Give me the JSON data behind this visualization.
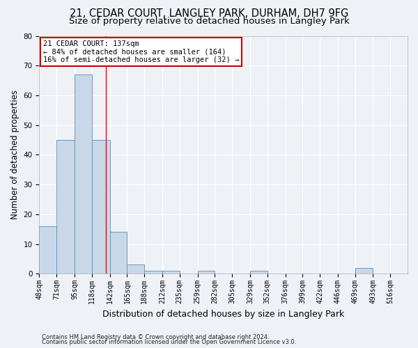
{
  "title1": "21, CEDAR COURT, LANGLEY PARK, DURHAM, DH7 9FG",
  "title2": "Size of property relative to detached houses in Langley Park",
  "xlabel": "Distribution of detached houses by size in Langley Park",
  "ylabel": "Number of detached properties",
  "footer1": "Contains HM Land Registry data © Crown copyright and database right 2024.",
  "footer2": "Contains public sector information licensed under the Open Government Licence v3.0.",
  "annotation_title": "21 CEDAR COURT: 137sqm",
  "annotation_line1": "← 84% of detached houses are smaller (164)",
  "annotation_line2": "16% of semi-detached houses are larger (32) →",
  "bar_left_edges": [
    48,
    71,
    95,
    118,
    142,
    165,
    188,
    212,
    235,
    259,
    282,
    305,
    329,
    352,
    376,
    399,
    422,
    446,
    469,
    493
  ],
  "bar_widths": [
    23,
    24,
    23,
    24,
    23,
    23,
    24,
    23,
    24,
    23,
    23,
    24,
    23,
    24,
    23,
    23,
    24,
    23,
    24,
    23
  ],
  "bar_heights": [
    16,
    45,
    67,
    45,
    14,
    3,
    1,
    1,
    0,
    1,
    0,
    0,
    1,
    0,
    0,
    0,
    0,
    0,
    2,
    0
  ],
  "tick_labels": [
    "48sqm",
    "71sqm",
    "95sqm",
    "118sqm",
    "142sqm",
    "165sqm",
    "188sqm",
    "212sqm",
    "235sqm",
    "259sqm",
    "282sqm",
    "305sqm",
    "329sqm",
    "352sqm",
    "376sqm",
    "399sqm",
    "422sqm",
    "446sqm",
    "469sqm",
    "493sqm",
    "516sqm"
  ],
  "bar_color": "#c8d8e8",
  "bar_edge_color": "#5b8db8",
  "red_line_x": 137,
  "ylim": [
    0,
    80
  ],
  "yticks": [
    0,
    10,
    20,
    30,
    40,
    50,
    60,
    70,
    80
  ],
  "background_color": "#eef2f7",
  "plot_bg_color": "#eef2f7",
  "grid_color": "#ffffff",
  "annotation_box_color": "#ffffff",
  "annotation_box_edge": "#cc0000",
  "title_fontsize": 10.5,
  "subtitle_fontsize": 9.5,
  "axis_label_fontsize": 8.5,
  "tick_fontsize": 7,
  "annotation_fontsize": 7.5,
  "footer_fontsize": 6
}
